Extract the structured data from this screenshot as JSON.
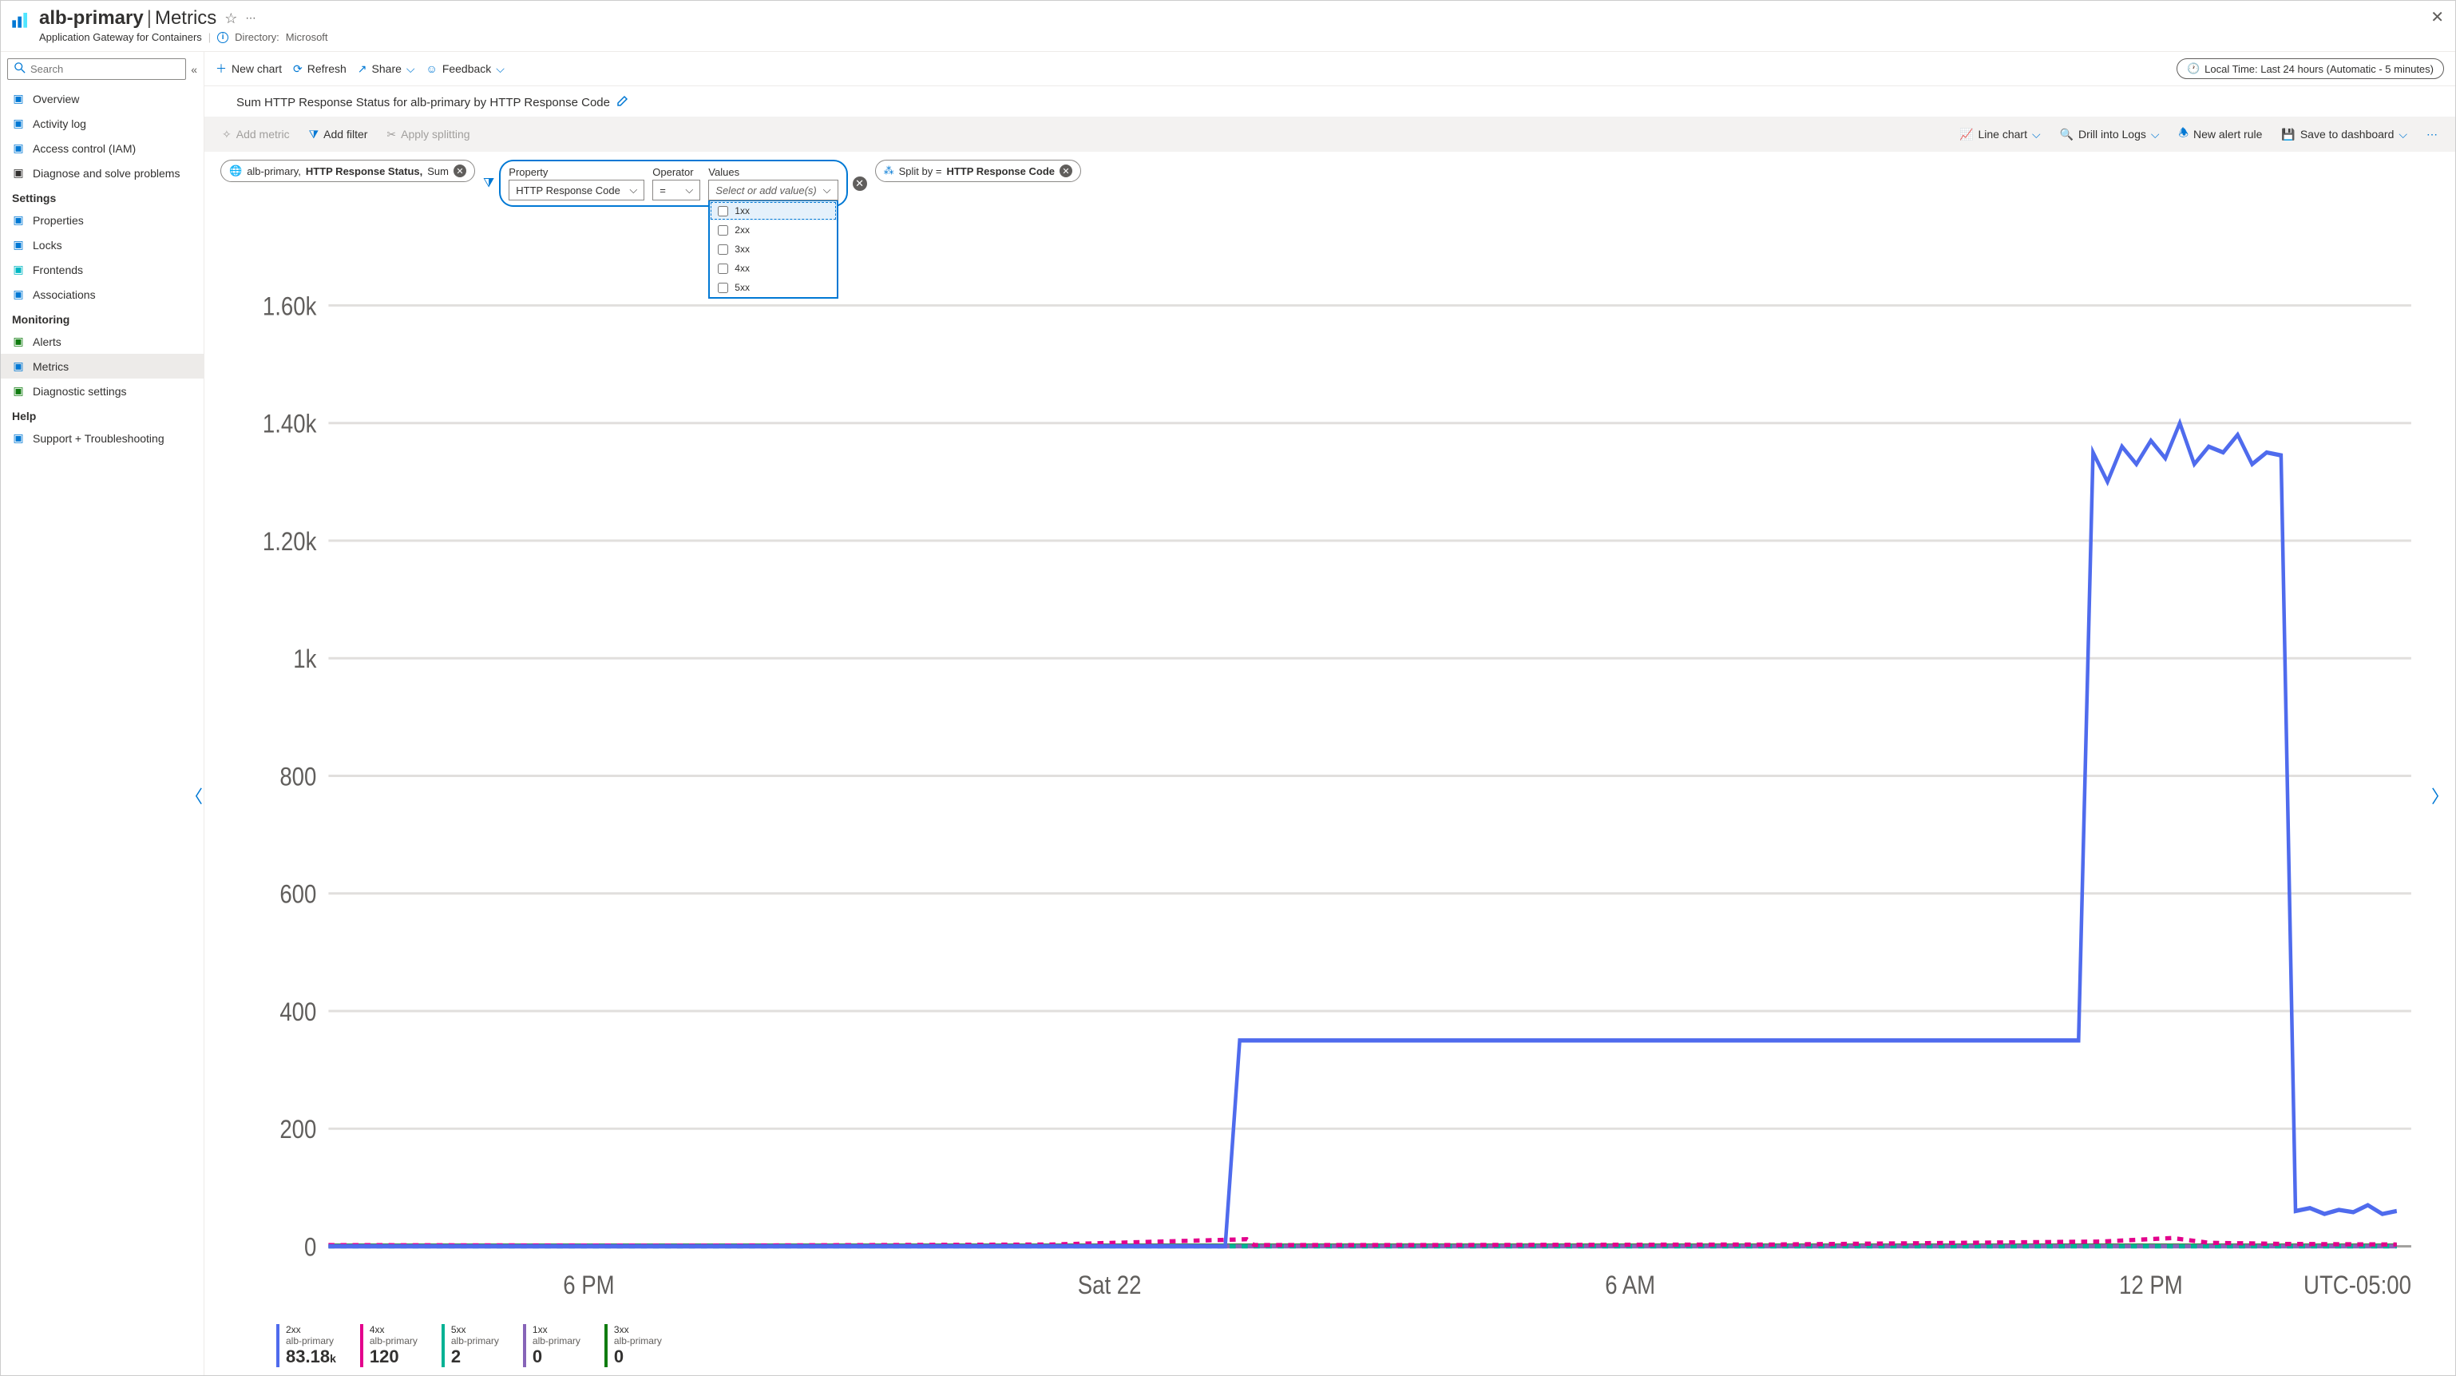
{
  "header": {
    "resource_name": "alb-primary",
    "page_name": "Metrics",
    "resource_type": "Application Gateway for Containers",
    "directory_label": "Directory:",
    "directory_value": "Microsoft"
  },
  "sidebar": {
    "search_placeholder": "Search",
    "items_top": [
      {
        "label": "Overview",
        "icon": "globe-icon",
        "color": "#0078d4"
      },
      {
        "label": "Activity log",
        "icon": "log-icon",
        "color": "#0078d4"
      },
      {
        "label": "Access control (IAM)",
        "icon": "people-icon",
        "color": "#0078d4"
      },
      {
        "label": "Diagnose and solve problems",
        "icon": "wrench-icon",
        "color": "#323130"
      }
    ],
    "section_settings": "Settings",
    "items_settings": [
      {
        "label": "Properties",
        "icon": "props-icon",
        "color": "#0078d4"
      },
      {
        "label": "Locks",
        "icon": "lock-icon",
        "color": "#0078d4"
      },
      {
        "label": "Frontends",
        "icon": "frontend-icon",
        "color": "#00b7c3"
      },
      {
        "label": "Associations",
        "icon": "assoc-icon",
        "color": "#0078d4"
      }
    ],
    "section_monitoring": "Monitoring",
    "items_monitoring": [
      {
        "label": "Alerts",
        "icon": "alert-icon",
        "color": "#107c10"
      },
      {
        "label": "Metrics",
        "icon": "metrics-icon",
        "color": "#0078d4",
        "active": true
      },
      {
        "label": "Diagnostic settings",
        "icon": "diag-icon",
        "color": "#107c10"
      }
    ],
    "section_help": "Help",
    "items_help": [
      {
        "label": "Support + Troubleshooting",
        "icon": "help-icon",
        "color": "#0078d4"
      }
    ]
  },
  "toolbar": {
    "new_chart": "New chart",
    "refresh": "Refresh",
    "share": "Share",
    "feedback": "Feedback",
    "time_range": "Local Time: Last 24 hours (Automatic - 5 minutes)"
  },
  "chart_header": {
    "title": "Sum HTTP Response Status for alb-primary by HTTP Response Code"
  },
  "chart_toolbar": {
    "add_metric": "Add metric",
    "add_filter": "Add filter",
    "apply_splitting": "Apply splitting",
    "line_chart": "Line chart",
    "drill_logs": "Drill into Logs",
    "new_alert": "New alert rule",
    "save_dashboard": "Save to dashboard"
  },
  "pills": {
    "metric_resource": "alb-primary,",
    "metric_name": "HTTP Response Status,",
    "metric_agg": "Sum",
    "filter": {
      "property_label": "Property",
      "property_value": "HTTP Response Code",
      "operator_label": "Operator",
      "operator_value": "=",
      "values_label": "Values",
      "values_placeholder": "Select or add value(s)",
      "options": [
        "1xx",
        "2xx",
        "3xx",
        "4xx",
        "5xx"
      ]
    },
    "split_prefix": "Split by = ",
    "split_value": "HTTP Response Code"
  },
  "chart": {
    "type": "line",
    "ylim": [
      0,
      1700
    ],
    "yticks": [
      {
        "v": 200,
        "label": "200"
      },
      {
        "v": 400,
        "label": "400"
      },
      {
        "v": 600,
        "label": "600"
      },
      {
        "v": 800,
        "label": "800"
      },
      {
        "v": 1000,
        "label": "1k"
      },
      {
        "v": 1200,
        "label": "1.20k"
      },
      {
        "v": 1400,
        "label": "1.40k"
      },
      {
        "v": 1600,
        "label": "1.60k"
      }
    ],
    "ytick_label_pos": [
      200,
      400,
      600,
      800,
      1000,
      1200,
      1400,
      1600
    ],
    "xlim": [
      0,
      288
    ],
    "xticks": [
      {
        "v": 36,
        "label": "6 PM"
      },
      {
        "v": 108,
        "label": "Sat 22"
      },
      {
        "v": 180,
        "label": "6 AM"
      },
      {
        "v": 252,
        "label": "12 PM"
      }
    ],
    "tz_label": "UTC-05:00",
    "background_color": "#ffffff",
    "grid_color": "#e1dfdd",
    "series_2xx": {
      "color": "#4f6bed",
      "points": [
        [
          0,
          0
        ],
        [
          124,
          0
        ],
        [
          126,
          350
        ],
        [
          242,
          350
        ],
        [
          244,
          1350
        ],
        [
          246,
          1300
        ],
        [
          248,
          1360
        ],
        [
          250,
          1330
        ],
        [
          252,
          1370
        ],
        [
          254,
          1340
        ],
        [
          256,
          1400
        ],
        [
          258,
          1330
        ],
        [
          260,
          1360
        ],
        [
          262,
          1350
        ],
        [
          264,
          1380
        ],
        [
          266,
          1330
        ],
        [
          268,
          1350
        ],
        [
          270,
          1345
        ],
        [
          272,
          60
        ],
        [
          274,
          65
        ],
        [
          276,
          55
        ],
        [
          278,
          62
        ],
        [
          280,
          58
        ],
        [
          282,
          70
        ],
        [
          284,
          55
        ],
        [
          286,
          60
        ]
      ]
    },
    "series_4xx": {
      "color": "#e3008c",
      "points": [
        [
          0,
          2
        ],
        [
          50,
          1
        ],
        [
          100,
          3
        ],
        [
          127,
          12
        ],
        [
          128,
          2
        ],
        [
          150,
          2
        ],
        [
          200,
          3
        ],
        [
          245,
          8
        ],
        [
          255,
          14
        ],
        [
          260,
          6
        ],
        [
          270,
          4
        ],
        [
          286,
          3
        ]
      ],
      "dashed": true
    },
    "series_5xx": {
      "color": "#00b294",
      "points": [
        [
          0,
          0
        ],
        [
          286,
          0
        ]
      ],
      "dashed": true
    },
    "series_1xx": {
      "color": "#8764b8",
      "points": [
        [
          0,
          0
        ],
        [
          286,
          0
        ]
      ]
    },
    "series_3xx": {
      "color": "#107c10",
      "points": [
        [
          0,
          1
        ],
        [
          286,
          1
        ]
      ]
    }
  },
  "legend": [
    {
      "code": "2xx",
      "resource": "alb-primary",
      "value": "83.18",
      "unit": "k",
      "color": "#4f6bed"
    },
    {
      "code": "4xx",
      "resource": "alb-primary",
      "value": "120",
      "unit": "",
      "color": "#e3008c"
    },
    {
      "code": "5xx",
      "resource": "alb-primary",
      "value": "2",
      "unit": "",
      "color": "#00b294"
    },
    {
      "code": "1xx",
      "resource": "alb-primary",
      "value": "0",
      "unit": "",
      "color": "#8764b8"
    },
    {
      "code": "3xx",
      "resource": "alb-primary",
      "value": "0",
      "unit": "",
      "color": "#107c10"
    }
  ]
}
